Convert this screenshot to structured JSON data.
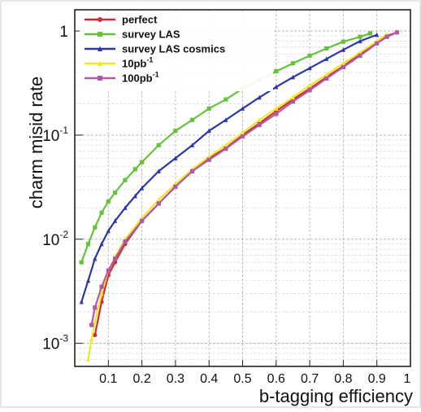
{
  "chart_data": {
    "type": "line",
    "xlabel": "b-tagging efficiency",
    "ylabel": "charm misid rate",
    "xlim": [
      0,
      1
    ],
    "ylim": [
      0.0006,
      1.6
    ],
    "y_scale": "log",
    "grid": true,
    "legend_position": "top-left",
    "x_ticks": [
      "0.1",
      "0.2",
      "0.3",
      "0.4",
      "0.5",
      "0.6",
      "0.7",
      "0.8",
      "0.9",
      "1"
    ],
    "y_ticks": [
      {
        "value": 0.001,
        "base": "10",
        "exp": "-3"
      },
      {
        "value": 0.01,
        "base": "10",
        "exp": "-2"
      },
      {
        "value": 0.1,
        "base": "10",
        "exp": "-1"
      },
      {
        "value": 1,
        "base": "1",
        "exp": ""
      }
    ],
    "series": [
      {
        "name": "perfect",
        "color": "#d42a35",
        "marker": "circle",
        "x": [
          0.06,
          0.08,
          0.1,
          0.12,
          0.15,
          0.2,
          0.25,
          0.3,
          0.35,
          0.4,
          0.45,
          0.5,
          0.55,
          0.6,
          0.65,
          0.7,
          0.75,
          0.8,
          0.85,
          0.9,
          0.93,
          0.96
        ],
        "y": [
          0.0012,
          0.0025,
          0.0045,
          0.006,
          0.009,
          0.015,
          0.022,
          0.032,
          0.045,
          0.06,
          0.075,
          0.1,
          0.13,
          0.17,
          0.22,
          0.28,
          0.36,
          0.46,
          0.6,
          0.78,
          0.9,
          0.97
        ]
      },
      {
        "name": "survey LAS",
        "color": "#66c23a",
        "marker": "square",
        "x": [
          0.02,
          0.04,
          0.06,
          0.08,
          0.1,
          0.12,
          0.15,
          0.18,
          0.2,
          0.25,
          0.3,
          0.35,
          0.4,
          0.45,
          0.5,
          0.55,
          0.6,
          0.65,
          0.7,
          0.75,
          0.8,
          0.85,
          0.88
        ],
        "y": [
          0.006,
          0.009,
          0.013,
          0.018,
          0.023,
          0.028,
          0.037,
          0.047,
          0.055,
          0.08,
          0.11,
          0.14,
          0.18,
          0.22,
          0.28,
          0.34,
          0.41,
          0.49,
          0.58,
          0.68,
          0.79,
          0.88,
          0.95
        ]
      },
      {
        "name": "survey LAS cosmics",
        "color": "#2d36a8",
        "marker": "triangle",
        "x": [
          0.02,
          0.04,
          0.06,
          0.08,
          0.1,
          0.12,
          0.15,
          0.18,
          0.2,
          0.25,
          0.3,
          0.35,
          0.4,
          0.45,
          0.5,
          0.55,
          0.6,
          0.65,
          0.7,
          0.75,
          0.8,
          0.85,
          0.9
        ],
        "y": [
          0.0025,
          0.004,
          0.0065,
          0.009,
          0.012,
          0.015,
          0.02,
          0.026,
          0.031,
          0.045,
          0.06,
          0.08,
          0.11,
          0.14,
          0.18,
          0.23,
          0.29,
          0.36,
          0.44,
          0.54,
          0.66,
          0.8,
          0.92
        ]
      },
      {
        "name": "10pb",
        "sup": "-1",
        "color": "#eaea2a",
        "marker": "triangle",
        "x": [
          0.04,
          0.05,
          0.06,
          0.08,
          0.1,
          0.12,
          0.15,
          0.2,
          0.25,
          0.3,
          0.35,
          0.4,
          0.45,
          0.5,
          0.55,
          0.6,
          0.65,
          0.7,
          0.75,
          0.8,
          0.85,
          0.9,
          0.93
        ],
        "y": [
          0.0007,
          0.0011,
          0.0016,
          0.003,
          0.005,
          0.0068,
          0.01,
          0.016,
          0.024,
          0.034,
          0.047,
          0.062,
          0.08,
          0.105,
          0.14,
          0.18,
          0.23,
          0.3,
          0.38,
          0.49,
          0.62,
          0.8,
          0.93
        ]
      },
      {
        "name": "100pb",
        "sup": "-1",
        "color": "#b05aa6",
        "marker": "square",
        "x": [
          0.05,
          0.06,
          0.08,
          0.1,
          0.12,
          0.15,
          0.2,
          0.25,
          0.3,
          0.35,
          0.4,
          0.45,
          0.5,
          0.55,
          0.6,
          0.65,
          0.7,
          0.75,
          0.8,
          0.85,
          0.9,
          0.93,
          0.96
        ],
        "y": [
          0.0015,
          0.0022,
          0.0035,
          0.005,
          0.0065,
          0.0095,
          0.015,
          0.022,
          0.032,
          0.045,
          0.058,
          0.074,
          0.097,
          0.125,
          0.16,
          0.21,
          0.27,
          0.35,
          0.45,
          0.58,
          0.76,
          0.88,
          0.97
        ]
      }
    ]
  }
}
